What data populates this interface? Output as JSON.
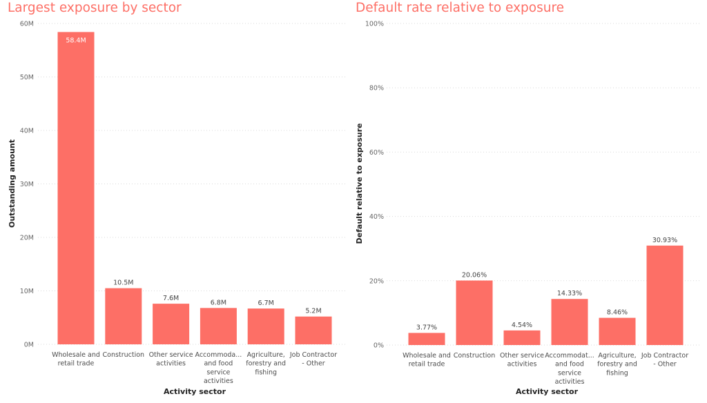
{
  "colors": {
    "accent": "#FD6F66",
    "bar": "#FD6F66"
  },
  "chart_data": [
    {
      "type": "bar",
      "title": "Largest exposure by sector",
      "xlabel": "Activity sector",
      "ylabel": "Outstanding amount",
      "ylim": [
        0,
        60000000
      ],
      "yticks": [
        0,
        10000000,
        20000000,
        30000000,
        40000000,
        50000000,
        60000000
      ],
      "ytick_labels": [
        "0M",
        "10M",
        "20M",
        "30M",
        "40M",
        "50M",
        "60M"
      ],
      "grid": true,
      "categories": [
        [
          "Wholesale and",
          "retail trade"
        ],
        [
          "Construction"
        ],
        [
          "Other service",
          "activities"
        ],
        [
          "Accommoda...",
          "and food",
          "service",
          "activities"
        ],
        [
          "Agriculture,",
          "forestry and",
          "fishing"
        ],
        [
          "Job Contractor",
          "- Other"
        ]
      ],
      "values": [
        58400000,
        10500000,
        7600000,
        6800000,
        6700000,
        5200000
      ],
      "data_labels": [
        "58.4M",
        "10.5M",
        "7.6M",
        "6.8M",
        "6.7M",
        "5.2M"
      ]
    },
    {
      "type": "bar",
      "title": "Default rate relative to exposure",
      "xlabel": "Activity sector",
      "ylabel": "Default relative to exposure",
      "ylim": [
        0,
        100
      ],
      "yticks": [
        0,
        20,
        40,
        60,
        80,
        100
      ],
      "ytick_labels": [
        "0%",
        "20%",
        "40%",
        "60%",
        "80%",
        "100%"
      ],
      "grid": true,
      "categories": [
        [
          "Wholesale and",
          "retail trade"
        ],
        [
          "Construction"
        ],
        [
          "Other service",
          "activities"
        ],
        [
          "Accommodat...",
          "and food",
          "service",
          "activities"
        ],
        [
          "Agriculture,",
          "forestry and",
          "fishing"
        ],
        [
          "Job Contractor",
          "- Other"
        ]
      ],
      "values": [
        3.77,
        20.06,
        4.54,
        14.33,
        8.46,
        30.93
      ],
      "data_labels": [
        "3.77%",
        "20.06%",
        "4.54%",
        "14.33%",
        "8.46%",
        "30.93%"
      ]
    }
  ]
}
